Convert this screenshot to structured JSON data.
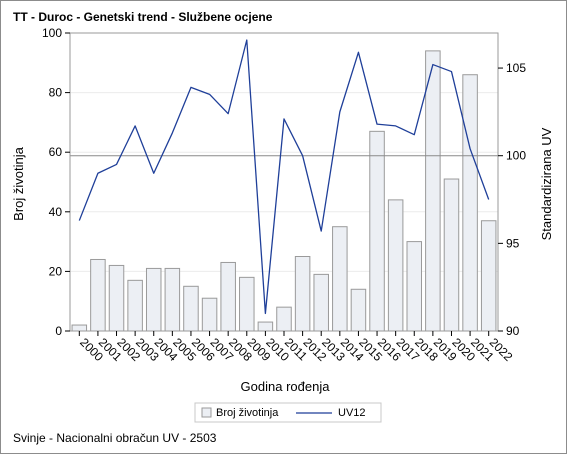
{
  "chart_data": {
    "type": "bar+line",
    "title": "TT - Duroc - Genetski trend - Službene ocjene",
    "xlabel": "Godina rođenja",
    "ylabel": "Broj životinja",
    "y2label": "Standardizirana UV",
    "categories": [
      "2000",
      "2001",
      "2002",
      "2003",
      "2004",
      "2005",
      "2006",
      "2007",
      "2008",
      "2009",
      "2010",
      "2011",
      "2012",
      "2013",
      "2014",
      "2015",
      "2016",
      "2017",
      "2018",
      "2019",
      "2020",
      "2021",
      "2022"
    ],
    "ylim": [
      0,
      100
    ],
    "y_ticks": [
      "0",
      "20",
      "40",
      "60",
      "80",
      "100"
    ],
    "y2lim": [
      90,
      107
    ],
    "y2_ticks": [
      "90",
      "95",
      "100",
      "105"
    ],
    "reference_line_y2": 100,
    "grid": "horizontal",
    "legend_position": "bottom",
    "series": [
      {
        "name": "Broj životinja",
        "type": "bar",
        "axis": "left",
        "color": "#eceff4",
        "edge_color": "#9a9a9a",
        "values": [
          2,
          24,
          22,
          17,
          21,
          21,
          15,
          11,
          23,
          18,
          3,
          8,
          25,
          19,
          35,
          14,
          67,
          44,
          30,
          94,
          51,
          86,
          37
        ]
      },
      {
        "name": "UV12",
        "type": "line",
        "axis": "right",
        "color": "#1f3f99",
        "values": [
          96.3,
          99.0,
          99.5,
          101.7,
          99.0,
          101.3,
          103.9,
          103.5,
          102.4,
          106.6,
          91.0,
          102.1,
          100.0,
          95.7,
          102.5,
          105.9,
          101.8,
          101.7,
          101.2,
          105.2,
          104.8,
          100.4,
          97.5
        ]
      }
    ]
  },
  "footnote": "Svinje - Nacionalni obračun UV - 2503"
}
